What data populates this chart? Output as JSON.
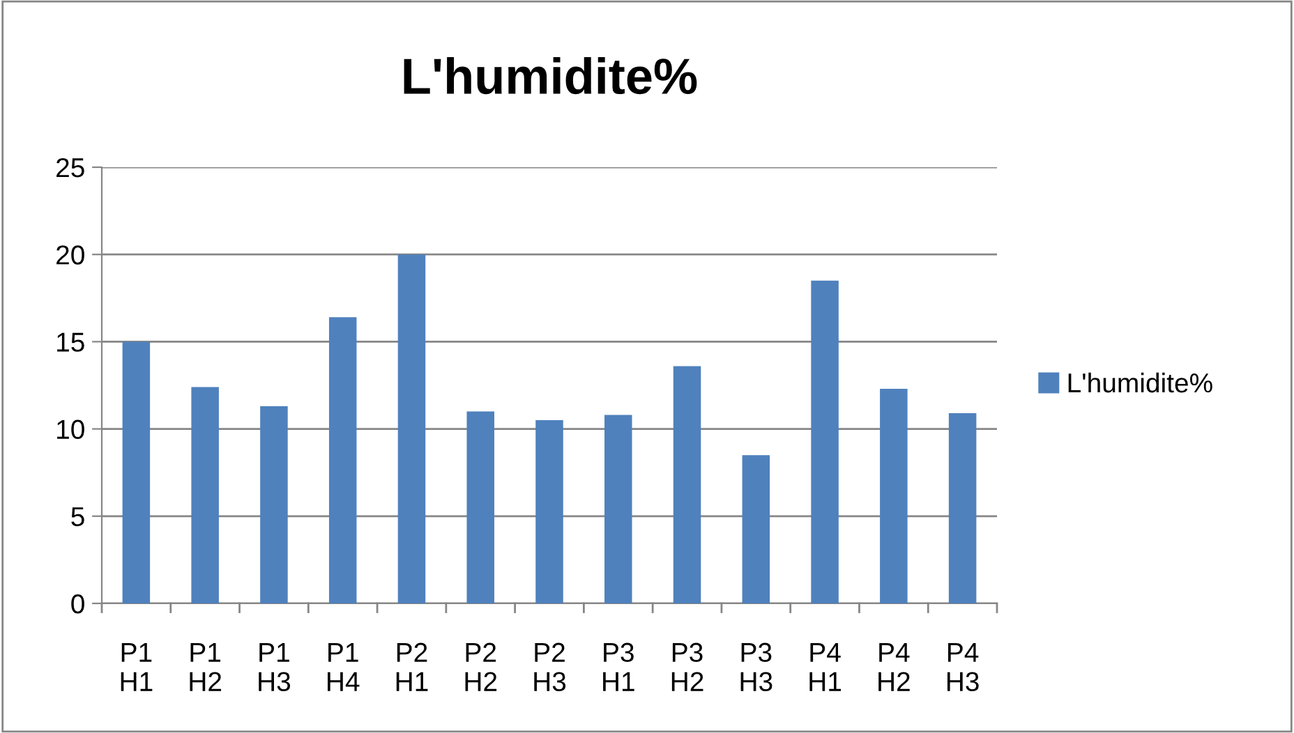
{
  "chart_data": {
    "type": "bar",
    "title": "L'humidite%",
    "categories": [
      "P1\nH1",
      "P1\nH2",
      "P1\nH3",
      "P1\nH4",
      "P2\nH1",
      "P2\nH2",
      "P2\nH3",
      "P3\nH1",
      "P3\nH2",
      "P3\nH3",
      "P4\nH1",
      "P4\nH2",
      "P4\nH3"
    ],
    "series": [
      {
        "name": "L'humidite%",
        "color": "#4f81bd",
        "values": [
          15.0,
          12.4,
          11.3,
          16.4,
          20.0,
          11.0,
          10.5,
          10.8,
          13.6,
          8.5,
          18.5,
          12.3,
          10.9
        ]
      }
    ],
    "ylim": [
      0,
      25
    ],
    "yticks": [
      0,
      5,
      10,
      15,
      20,
      25
    ],
    "grid": "y",
    "legend": "right"
  }
}
